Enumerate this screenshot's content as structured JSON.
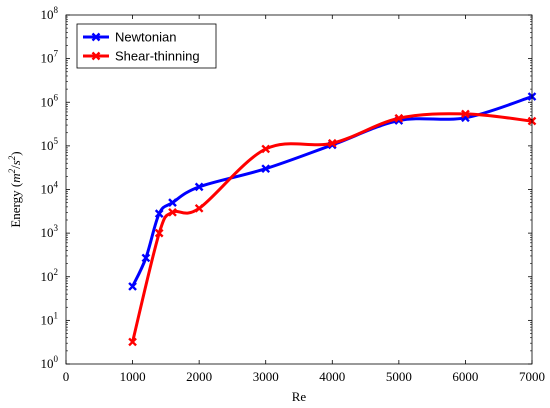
{
  "chart_data": {
    "type": "line",
    "title": "",
    "xlabel": "Re",
    "ylabel": "Energy (m²/s²)",
    "ylabel_parts": {
      "prefix": "Energy (",
      "m": "m",
      "m_exp": "2",
      "slash": "/",
      "s": "s",
      "s_exp": "2",
      "suffix": ")"
    },
    "xlim": [
      0,
      7000
    ],
    "ylim": [
      1,
      100000000
    ],
    "y_scale": "log",
    "grid": false,
    "legend_position": "top-left",
    "x_ticks": [
      0,
      1000,
      2000,
      3000,
      4000,
      5000,
      6000,
      7000
    ],
    "x_tick_labels": [
      "0",
      "1000",
      "2000",
      "3000",
      "4000",
      "5000",
      "6000",
      "7000"
    ],
    "y_tick_exponents": [
      0,
      1,
      2,
      3,
      4,
      5,
      6,
      7,
      8
    ],
    "y_tick_base": "10",
    "series": [
      {
        "name": "Newtonian",
        "color": "#0000ff",
        "marker": "x",
        "x": [
          1000,
          1200,
          1400,
          1600,
          2000,
          3000,
          4000,
          5000,
          6000,
          7000
        ],
        "y": [
          60,
          270,
          2800,
          5000,
          11500,
          30000,
          105000,
          380000,
          440000,
          1350000
        ]
      },
      {
        "name": "Shear-thinning",
        "color": "#ff0000",
        "marker": "x",
        "x": [
          1000,
          1400,
          1600,
          2000,
          3000,
          4000,
          5000,
          6000,
          7000
        ],
        "y": [
          3.2,
          1000,
          3000,
          3700,
          85000,
          115000,
          430000,
          540000,
          370000
        ]
      }
    ]
  }
}
